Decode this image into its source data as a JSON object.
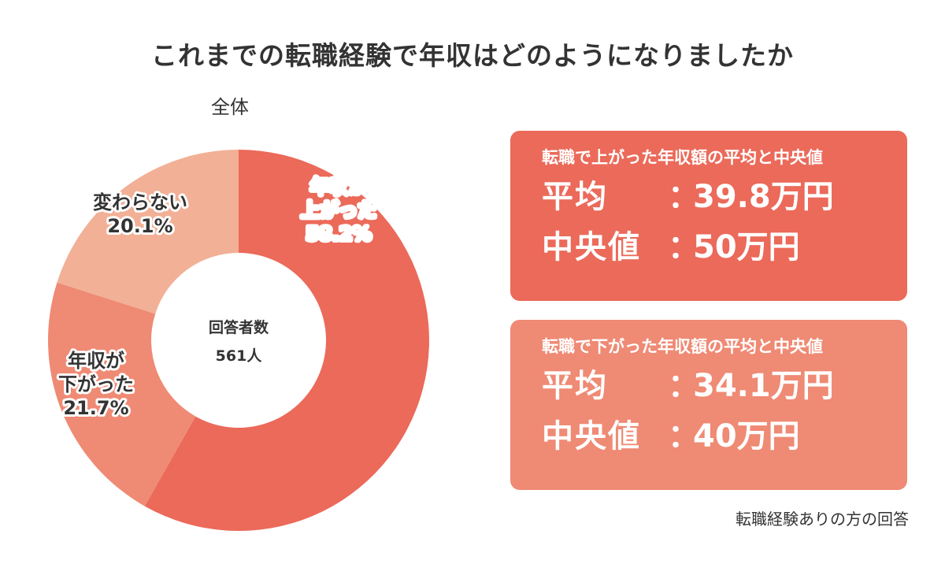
{
  "title": "これまでの転職経験で年収はどのようになりましたか",
  "subtitle": "全体",
  "colors": {
    "up": "#EB6A5A",
    "down": "#EF8A74",
    "same": "#F2B096",
    "label_up": "#FFFFFF",
    "label_text": "#333333"
  },
  "chart_data": {
    "type": "pie",
    "center_label": "回答者数",
    "center_value": "561人",
    "slices": [
      {
        "name_lines": [
          "年収が",
          "上がった"
        ],
        "value": 58.2,
        "value_text": "58.2%"
      },
      {
        "name_lines": [
          "年収が",
          "下がった"
        ],
        "value": 21.7,
        "value_text": "21.7%"
      },
      {
        "name_lines": [
          "変わらない"
        ],
        "value": 20.1,
        "value_text": "20.1%"
      }
    ]
  },
  "panels": {
    "up": {
      "heading": "転職で上がった年収額の平均と中央値",
      "average_label": "平均",
      "average_value": "39.8万円",
      "median_label": "中央値",
      "median_value": "50万円"
    },
    "down": {
      "heading": "転職で下がった年収額の平均と中央値",
      "average_label": "平均",
      "average_value": "34.1万円",
      "median_label": "中央値",
      "median_value": "40万円"
    },
    "colon": "："
  },
  "note": "転職経験ありの方の回答"
}
